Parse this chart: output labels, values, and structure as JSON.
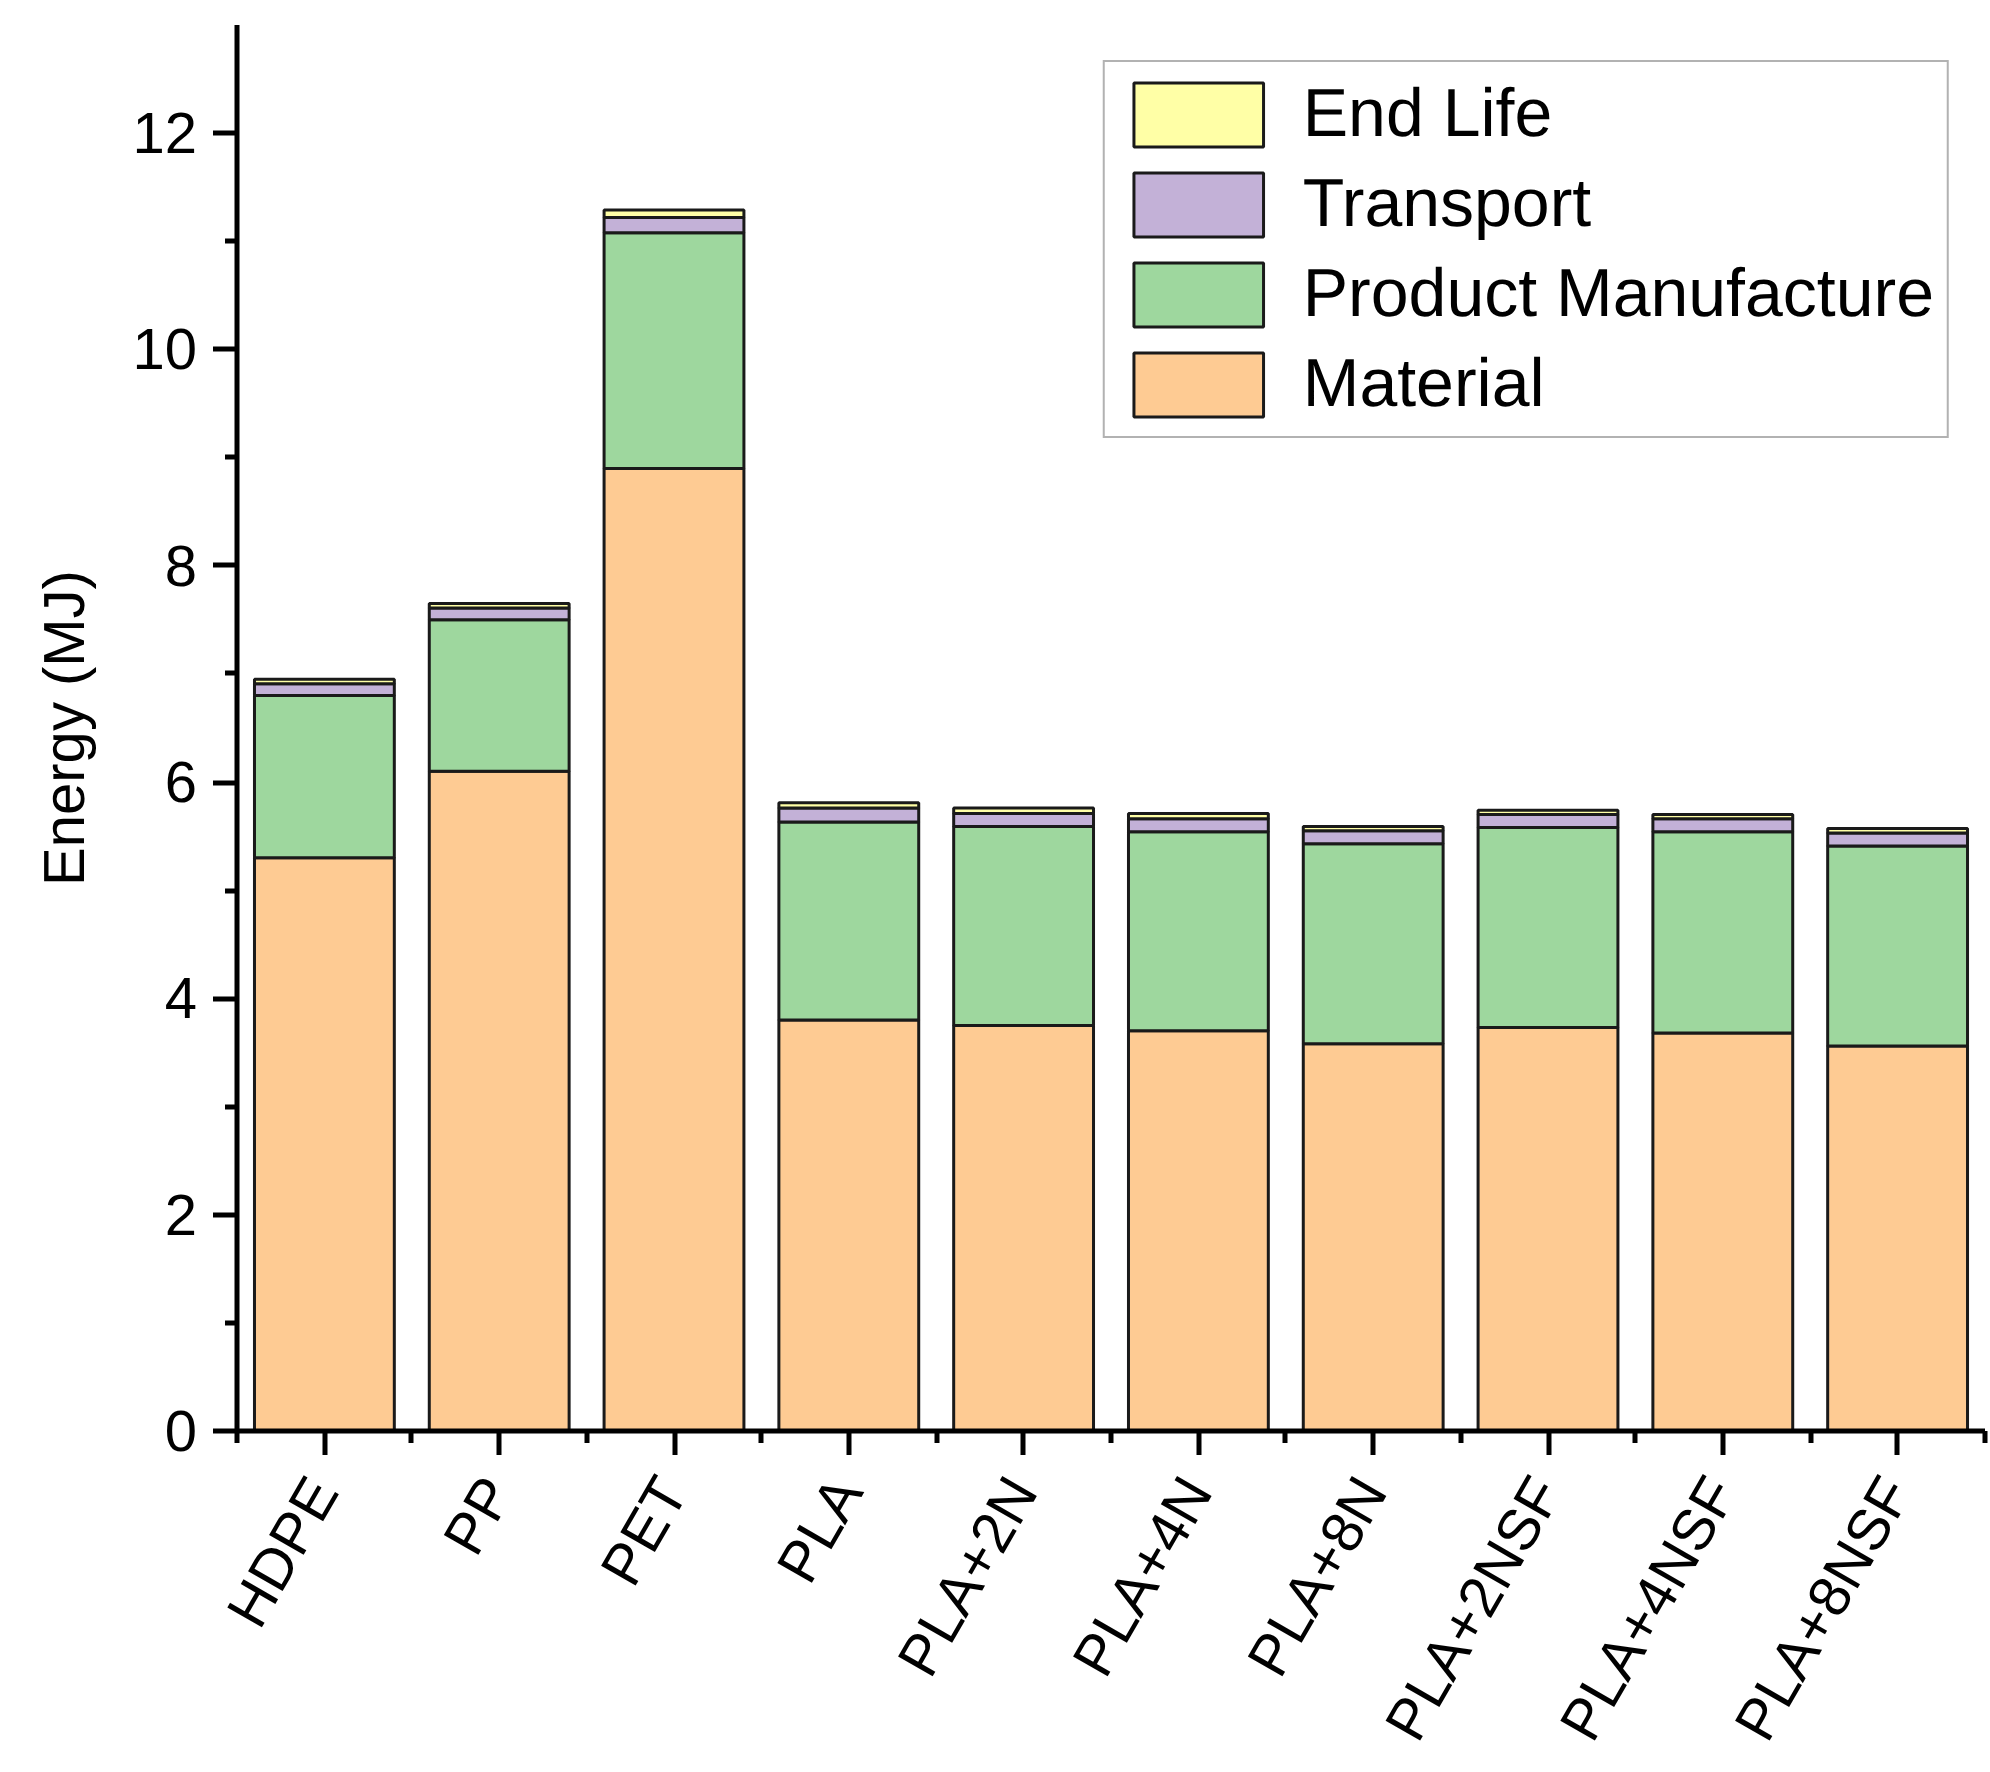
{
  "chart_data": {
    "type": "bar",
    "stacked": true,
    "ylabel": "Energy (MJ)",
    "categories": [
      "HDPE",
      "PP",
      "PET",
      "PLA",
      "PLA+2N",
      "PLA+4N",
      "PLA+8N",
      "PLA+2NSF",
      "PLA+4NSF",
      "PLA+8NSF"
    ],
    "series": [
      {
        "name": "Material",
        "color": "#fecb93",
        "values": [
          5.3,
          6.1,
          8.9,
          3.8,
          3.75,
          3.7,
          3.58,
          3.73,
          3.68,
          3.56
        ]
      },
      {
        "name": "Product Manufacture",
        "color": "#9ed79e",
        "values": [
          1.5,
          1.4,
          2.18,
          1.83,
          1.84,
          1.84,
          1.85,
          1.85,
          1.86,
          1.85
        ]
      },
      {
        "name": "Transport",
        "color": "#c3b1d7",
        "values": [
          0.11,
          0.11,
          0.14,
          0.13,
          0.12,
          0.12,
          0.12,
          0.12,
          0.12,
          0.12
        ]
      },
      {
        "name": "End Life",
        "color": "#ffffa6",
        "values": [
          0.04,
          0.04,
          0.07,
          0.05,
          0.05,
          0.05,
          0.04,
          0.04,
          0.04,
          0.04
        ]
      }
    ],
    "ylim": [
      0,
      13
    ],
    "yticks": [
      0,
      {
        "value": 1,
        "label": null
      },
      2,
      {
        "value": 3,
        "label": null
      },
      4,
      {
        "value": 5,
        "label": null
      },
      6,
      {
        "value": 7,
        "label": null
      },
      8,
      {
        "value": 9,
        "label": null
      },
      10,
      {
        "value": 11,
        "label": null
      },
      12
    ],
    "grid": false,
    "legend": "top right"
  }
}
